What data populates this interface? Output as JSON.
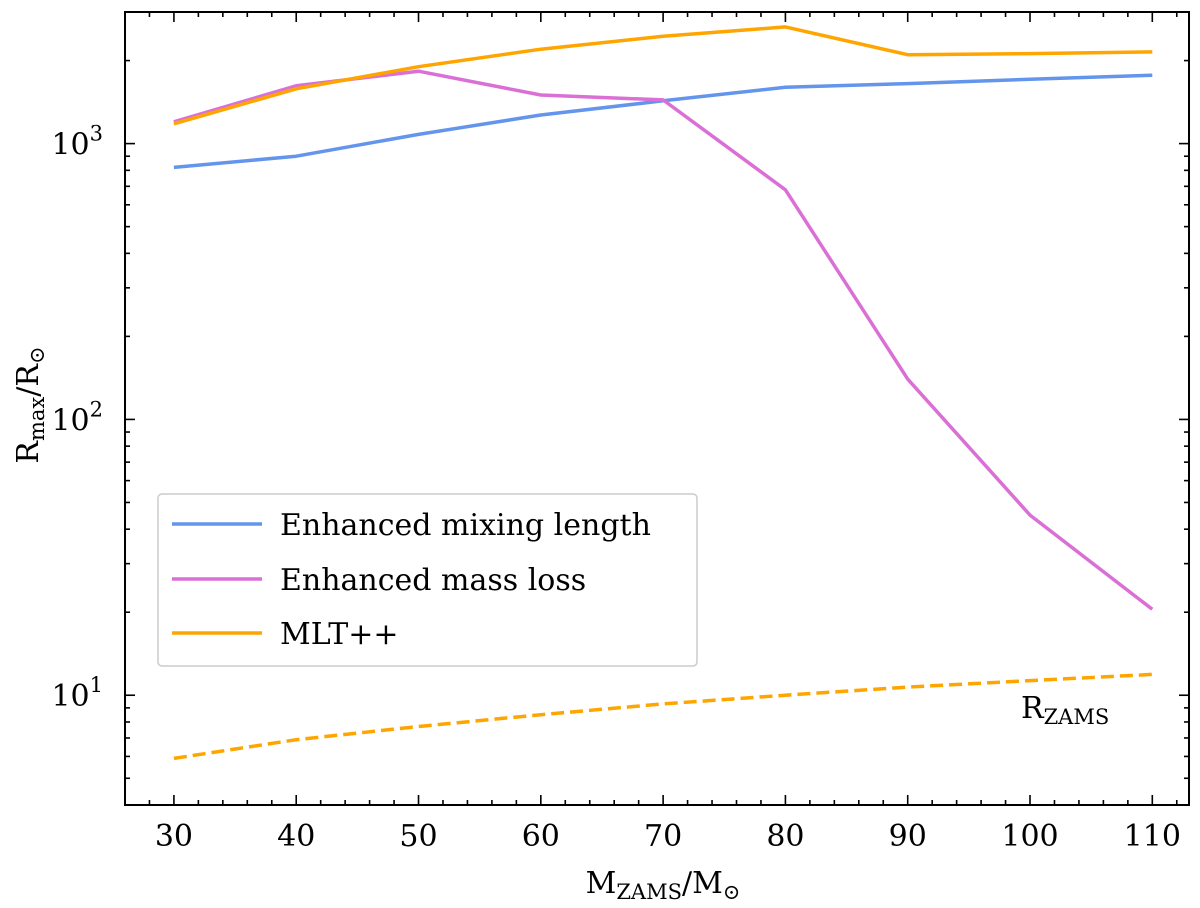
{
  "chart_data": {
    "type": "line",
    "xlabel": {
      "main": "M",
      "sub": "ZAMS",
      "sep": "/",
      "main2": "M",
      "sub2": "⊙"
    },
    "ylabel": {
      "main": "R",
      "sub": "max",
      "sep": "/",
      "main2": "R",
      "sub2": "⊙"
    },
    "xlim": [
      26,
      113
    ],
    "ylim": [
      4,
      3000
    ],
    "yscale": "log",
    "x": [
      30,
      40,
      50,
      60,
      70,
      80,
      90,
      100,
      110
    ],
    "xticks": [
      "30",
      "40",
      "50",
      "60",
      "70",
      "80",
      "90",
      "100",
      "110"
    ],
    "yticks": [
      {
        "base": "10",
        "exp": "1",
        "value": 10
      },
      {
        "base": "10",
        "exp": "2",
        "value": 100
      },
      {
        "base": "10",
        "exp": "3",
        "value": 1000
      }
    ],
    "series": [
      {
        "name": "Enhanced mixing length",
        "color": "#6495ed",
        "style": "solid",
        "values": [
          820,
          900,
          1080,
          1270,
          1430,
          1600,
          1650,
          1710,
          1770
        ]
      },
      {
        "name": "Enhanced mass loss",
        "color": "#da70d6",
        "style": "solid",
        "values": [
          1200,
          1620,
          1830,
          1500,
          1440,
          680,
          140,
          45,
          20.5
        ]
      },
      {
        "name": "MLT++",
        "color": "#ffa500",
        "style": "solid",
        "values": [
          1180,
          1580,
          1900,
          2200,
          2450,
          2650,
          2100,
          2120,
          2150
        ]
      },
      {
        "name": "R_ZAMS",
        "color": "#ffa500",
        "style": "dashed",
        "values": [
          5.9,
          6.9,
          7.7,
          8.5,
          9.3,
          10.0,
          10.7,
          11.3,
          11.9
        ]
      }
    ],
    "annotation": {
      "main": "R",
      "sub": "ZAMS"
    },
    "legend": {
      "position": "lower-left",
      "entries": [
        "Enhanced mixing length",
        "Enhanced mass loss",
        "MLT++"
      ]
    }
  }
}
